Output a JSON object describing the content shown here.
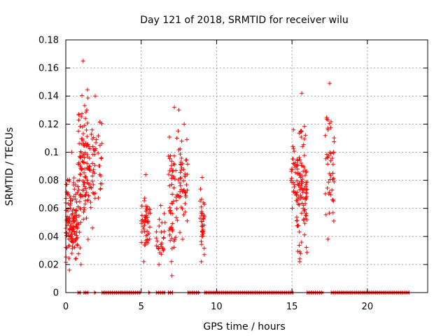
{
  "chart_data": {
    "type": "scatter",
    "title": "Day 121 of 2018, SRMTID for receiver wilu",
    "xlabel": "GPS time / hours",
    "ylabel": "SRMTID / TECUs",
    "xlim": [
      0,
      24
    ],
    "ylim": [
      0,
      0.18
    ],
    "xticks": [
      0,
      5,
      10,
      15,
      20
    ],
    "xtick_labels": [
      "0",
      "5",
      "10",
      "15",
      "20"
    ],
    "yticks": [
      0,
      0.02,
      0.04,
      0.06,
      0.08,
      0.1,
      0.12,
      0.14,
      0.16,
      0.18
    ],
    "ytick_labels": [
      "0",
      "0.02",
      "0.04",
      "0.06",
      "0.08",
      "0.1",
      "0.12",
      "0.14",
      "0.16",
      "0.18"
    ],
    "grid": true,
    "marker": "+",
    "color": "#ff0000",
    "series": [
      {
        "name": "SRMTID",
        "clusters": [
          {
            "x_start": 0.0,
            "x_end": 0.8,
            "y_min": 0.016,
            "y_max": 0.1,
            "count": 130
          },
          {
            "x_start": 0.8,
            "x_end": 1.5,
            "y_min": 0.02,
            "y_max": 0.165,
            "count": 110
          },
          {
            "x_start": 1.5,
            "x_end": 2.4,
            "y_min": 0.046,
            "y_max": 0.14,
            "count": 60
          },
          {
            "x_start": 5.0,
            "x_end": 5.6,
            "y_min": 0.022,
            "y_max": 0.084,
            "count": 50
          },
          {
            "x_start": 6.0,
            "x_end": 6.6,
            "y_min": 0.02,
            "y_max": 0.062,
            "count": 25
          },
          {
            "x_start": 6.8,
            "x_end": 7.6,
            "y_min": 0.012,
            "y_max": 0.132,
            "count": 70
          },
          {
            "x_start": 7.6,
            "x_end": 8.1,
            "y_min": 0.038,
            "y_max": 0.12,
            "count": 40
          },
          {
            "x_start": 8.9,
            "x_end": 9.2,
            "y_min": 0.022,
            "y_max": 0.082,
            "count": 35
          },
          {
            "x_start": 14.9,
            "x_end": 15.3,
            "y_min": 0.06,
            "y_max": 0.116,
            "count": 25
          },
          {
            "x_start": 15.3,
            "x_end": 16.0,
            "y_min": 0.022,
            "y_max": 0.142,
            "count": 110
          },
          {
            "x_start": 17.2,
            "x_end": 17.8,
            "y_min": 0.038,
            "y_max": 0.149,
            "count": 45
          }
        ],
        "baseline_segments": [
          [
            0.8,
            1.0
          ],
          [
            1.2,
            1.5
          ],
          [
            1.9,
            2.0
          ],
          [
            2.4,
            5.0
          ],
          [
            5.5,
            5.6
          ],
          [
            6.0,
            6.6
          ],
          [
            6.8,
            7.1
          ],
          [
            8.1,
            8.9
          ],
          [
            9.2,
            15.1
          ],
          [
            16.0,
            17.1
          ],
          [
            17.6,
            22.8
          ]
        ]
      }
    ]
  }
}
